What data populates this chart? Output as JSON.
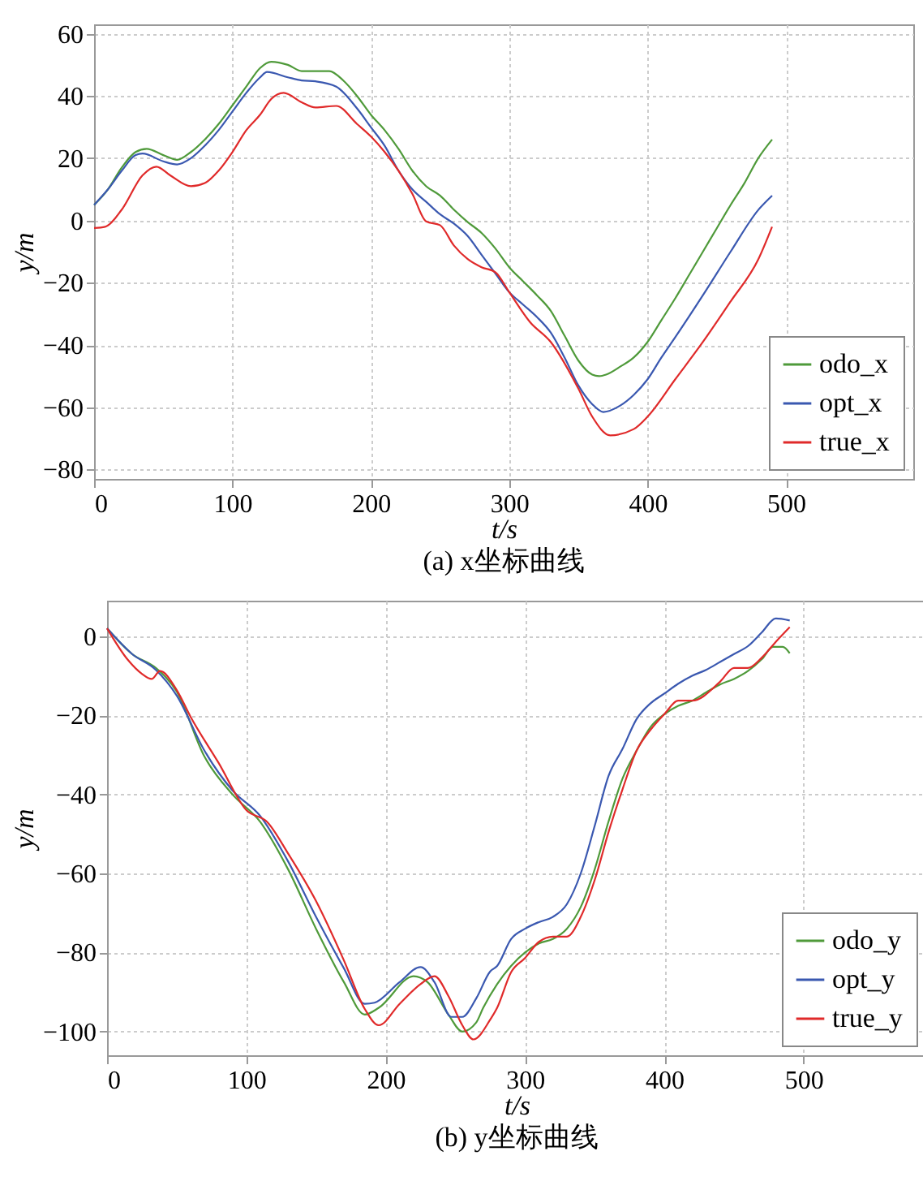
{
  "chart_data": [
    {
      "type": "line",
      "title": "(a) x坐标曲线",
      "xlabel": "t/s",
      "ylabel": "y/m",
      "xlim": [
        0,
        592
      ],
      "xticks": [
        0,
        100,
        200,
        300,
        400,
        500
      ],
      "ylim": [
        -83,
        63
      ],
      "yticks": [
        -80,
        -60,
        -40,
        -20,
        0,
        20,
        40,
        60
      ],
      "grid": true,
      "legend": "bottom right",
      "series": [
        {
          "name": "odo_x",
          "color": "#4f9a3a",
          "x": [
            0,
            10,
            20,
            30,
            38,
            50,
            60,
            70,
            80,
            90,
            100,
            110,
            120,
            128,
            140,
            150,
            160,
            170,
            180,
            190,
            200,
            210,
            220,
            230,
            240,
            250,
            260,
            270,
            280,
            290,
            300,
            310,
            320,
            330,
            340,
            350,
            360,
            365,
            370,
            380,
            390,
            400,
            410,
            420,
            430,
            440,
            450,
            460,
            470,
            480,
            490
          ],
          "values": [
            5,
            10,
            17,
            22,
            23,
            21,
            19.5,
            22,
            26,
            31,
            37,
            43,
            49,
            51,
            50,
            48,
            48,
            48,
            45,
            40,
            34,
            29,
            23,
            16,
            11,
            8,
            3.5,
            -0.5,
            -4,
            -9,
            -15,
            -19.5,
            -24,
            -29,
            -37,
            -45,
            -49.5,
            -50,
            -49.5,
            -47,
            -44,
            -39,
            -32,
            -25,
            -17.5,
            -10,
            -2.5,
            5,
            12,
            20,
            26
          ]
        },
        {
          "name": "opt_x",
          "color": "#3a58b0",
          "x": [
            0,
            10,
            20,
            30,
            35,
            50,
            60,
            70,
            80,
            90,
            100,
            110,
            120,
            125,
            140,
            150,
            160,
            175,
            190,
            200,
            210,
            220,
            230,
            240,
            250,
            260,
            270,
            280,
            290,
            300,
            310,
            320,
            330,
            340,
            350,
            360,
            368,
            380,
            390,
            400,
            410,
            420,
            440,
            460,
            480,
            490
          ],
          "values": [
            5,
            10,
            16,
            21,
            21.5,
            19,
            18,
            20,
            24,
            29,
            35,
            41,
            46,
            47.7,
            46,
            45,
            44.7,
            43,
            36,
            30,
            24,
            16,
            10,
            6,
            2,
            -1,
            -5,
            -11,
            -17,
            -23,
            -27,
            -31,
            -36,
            -44,
            -53,
            -59,
            -61.5,
            -59.5,
            -56,
            -51,
            -44,
            -37.5,
            -24,
            -10,
            3.4,
            8
          ]
        },
        {
          "name": "true_x",
          "color": "#e02a2a",
          "x": [
            0,
            8,
            20,
            35,
            45,
            55,
            70,
            80,
            90,
            100,
            110,
            120,
            128,
            137,
            150,
            160,
            175,
            190,
            200,
            210,
            220,
            230,
            240,
            250,
            260,
            270,
            280,
            290,
            300,
            315,
            330,
            350,
            360,
            373,
            390,
            400,
            420,
            440,
            460,
            480,
            490
          ],
          "values": [
            -2.4,
            -2,
            3.5,
            14.5,
            17.3,
            14.5,
            11,
            12,
            16,
            22,
            29,
            34,
            39,
            41,
            38,
            36.3,
            36.8,
            31,
            27,
            22,
            16,
            8.6,
            -0.3,
            -1.5,
            -8,
            -12.4,
            -15,
            -16.6,
            -23,
            -32.6,
            -39,
            -54,
            -63,
            -69,
            -67,
            -63,
            -51,
            -39,
            -26,
            -12.5,
            -2
          ]
        }
      ]
    },
    {
      "type": "line",
      "title": "(b) y坐标曲线",
      "xlabel": "t/s",
      "ylabel": "y/m",
      "xlim": [
        0,
        588
      ],
      "xticks": [
        0,
        100,
        200,
        300,
        400,
        500
      ],
      "ylim": [
        -106,
        9
      ],
      "yticks": [
        -100,
        -80,
        -60,
        -40,
        -20,
        0
      ],
      "grid": true,
      "legend": "bottom right",
      "series": [
        {
          "name": "odo_y",
          "color": "#4f9a3a",
          "x": [
            0,
            18,
            35,
            50,
            70,
            90,
            110,
            130,
            150,
            170,
            185,
            195,
            220,
            230,
            245,
            255,
            265,
            270,
            280,
            290,
            300,
            310,
            320,
            330,
            340,
            350,
            360,
            370,
            380,
            390,
            400,
            410,
            420,
            430,
            440,
            450,
            460,
            470,
            478,
            485,
            490
          ],
          "values": [
            2,
            -4.5,
            -8,
            -14,
            -30.5,
            -40,
            -47,
            -59,
            -74,
            -87.5,
            -95.7,
            -94,
            -86,
            -87.5,
            -95.7,
            -100,
            -97.7,
            -94,
            -88,
            -83.4,
            -80,
            -77.7,
            -76.6,
            -74,
            -68.5,
            -59,
            -46.8,
            -36,
            -29,
            -23,
            -19.7,
            -17.6,
            -16.3,
            -14.2,
            -12.2,
            -10.8,
            -8.8,
            -5.8,
            -2.7,
            -2.7,
            -4.3
          ]
        },
        {
          "name": "opt_y",
          "color": "#3a58b0",
          "x": [
            0,
            18,
            35,
            50,
            70,
            90,
            110,
            130,
            150,
            170,
            185,
            192,
            210,
            225,
            235,
            247,
            255,
            265,
            275,
            280,
            290,
            300,
            310,
            320,
            330,
            340,
            350,
            360,
            370,
            380,
            390,
            400,
            410,
            420,
            430,
            440,
            450,
            460,
            470,
            480,
            490
          ],
          "values": [
            2,
            -4.5,
            -8.5,
            -15,
            -29,
            -39,
            -45.5,
            -57,
            -71,
            -84,
            -93,
            -92.7,
            -87.5,
            -83.7,
            -87.5,
            -96.3,
            -96.3,
            -91.6,
            -84.8,
            -83.4,
            -76.6,
            -74,
            -72.3,
            -71,
            -67.8,
            -60,
            -48,
            -35.3,
            -28.5,
            -21,
            -17,
            -14.5,
            -12,
            -10,
            -8.5,
            -6.5,
            -4.5,
            -2.5,
            1,
            4.5,
            4
          ]
        },
        {
          "name": "true_y",
          "color": "#e02a2a",
          "x": [
            0,
            15,
            25,
            32,
            38,
            50,
            60,
            80,
            100,
            115,
            130,
            150,
            170,
            185,
            195,
            210,
            225,
            235,
            245,
            255,
            263,
            275,
            280,
            290,
            300,
            310,
            320,
            330,
            340,
            350,
            360,
            370,
            380,
            390,
            400,
            410,
            420,
            440,
            450,
            460,
            470,
            480,
            490
          ],
          "values": [
            2,
            -6,
            -9.5,
            -10.8,
            -8.8,
            -13.6,
            -20.4,
            -32,
            -44,
            -47,
            -55,
            -67,
            -82,
            -94.3,
            -98.4,
            -93,
            -88,
            -86,
            -91,
            -98.4,
            -102,
            -97,
            -94,
            -85,
            -81.4,
            -77.3,
            -76,
            -76,
            -71,
            -61.7,
            -49.5,
            -38.7,
            -29,
            -23.7,
            -19.7,
            -16.3,
            -16.3,
            -11.5,
            -8,
            -8,
            -5.4,
            -1.4,
            2.3
          ]
        }
      ]
    }
  ]
}
